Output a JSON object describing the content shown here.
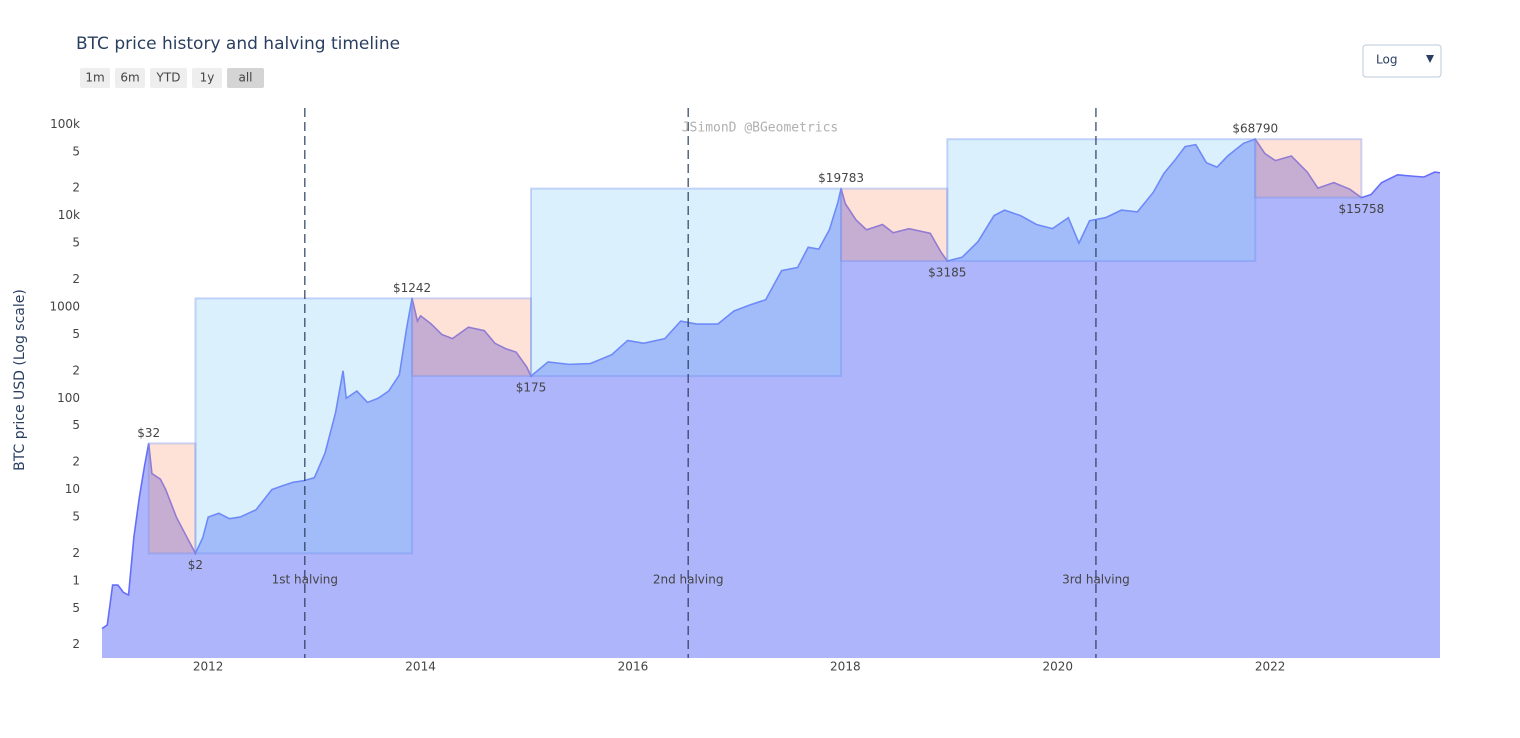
{
  "chart_data": {
    "type": "area",
    "title": "BTC price history and halving timeline",
    "range_buttons": [
      "1m",
      "6m",
      "YTD",
      "1y",
      "all"
    ],
    "active_button": 4,
    "scale_menu": "Log",
    "watermark": "JSimonD @BGeometrics",
    "y_label": "BTC price USD (Log scale)",
    "log_y": true,
    "area_color": "#aeb5fa",
    "line_color": "#636efa",
    "rise_color": "rgba(135,206,250,0.3)",
    "fall_color": "rgba(255,160,122,0.3)",
    "xlim": [
      2011.0,
      2023.6
    ],
    "xticks": [
      2012,
      2014,
      2016,
      2018,
      2020,
      2022
    ],
    "ylim": [
      0.143,
      151000
    ],
    "yticks": [
      {
        "value": 100000,
        "label": "100k"
      },
      {
        "value": 50000,
        "label": "5"
      },
      {
        "value": 20000,
        "label": "2"
      },
      {
        "value": 10000,
        "label": "10k"
      },
      {
        "value": 5000,
        "label": "5"
      },
      {
        "value": 2000,
        "label": "2"
      },
      1000,
      {
        "value": 500,
        "label": "5"
      },
      {
        "value": 200,
        "label": "2"
      },
      100,
      {
        "value": 50,
        "label": "5"
      },
      {
        "value": 20,
        "label": "2"
      },
      10,
      5,
      2,
      1,
      {
        "value": 0.5,
        "label": "5"
      },
      {
        "value": 0.2,
        "label": "2"
      }
    ],
    "x": [
      2011.0,
      2011.05,
      2011.1,
      2011.15,
      2011.2,
      2011.25,
      2011.3,
      2011.35,
      2011.4,
      2011.44,
      2011.47,
      2011.55,
      2011.6,
      2011.7,
      2011.8,
      2011.88,
      2011.95,
      2012.0,
      2012.1,
      2012.2,
      2012.3,
      2012.45,
      2012.6,
      2012.7,
      2012.8,
      2012.9,
      2013.0,
      2013.1,
      2013.2,
      2013.27,
      2013.3,
      2013.4,
      2013.5,
      2013.6,
      2013.7,
      2013.8,
      2013.87,
      2013.92,
      2013.97,
      2014.0,
      2014.1,
      2014.2,
      2014.3,
      2014.45,
      2014.6,
      2014.7,
      2014.8,
      2014.9,
      2015.0,
      2015.04,
      2015.2,
      2015.4,
      2015.6,
      2015.8,
      2015.95,
      2016.1,
      2016.3,
      2016.45,
      2016.6,
      2016.8,
      2016.95,
      2017.1,
      2017.25,
      2017.4,
      2017.55,
      2017.65,
      2017.75,
      2017.85,
      2017.93,
      2017.96,
      2018.0,
      2018.1,
      2018.2,
      2018.35,
      2018.45,
      2018.6,
      2018.8,
      2018.9,
      2018.96,
      2019.1,
      2019.25,
      2019.4,
      2019.5,
      2019.65,
      2019.8,
      2019.95,
      2020.1,
      2020.2,
      2020.3,
      2020.45,
      2020.6,
      2020.75,
      2020.9,
      2021.0,
      2021.1,
      2021.2,
      2021.3,
      2021.4,
      2021.5,
      2021.6,
      2021.75,
      2021.86,
      2021.95,
      2022.05,
      2022.2,
      2022.35,
      2022.45,
      2022.6,
      2022.75,
      2022.86,
      2022.95,
      2023.05,
      2023.2,
      2023.35,
      2023.45,
      2023.55,
      2023.6
    ],
    "values": [
      0.3,
      0.33,
      0.9,
      0.9,
      0.75,
      0.7,
      3,
      8,
      18,
      32,
      15,
      13,
      10,
      5,
      3,
      2,
      3,
      5,
      5.5,
      4.8,
      5,
      6,
      10,
      11,
      12,
      12.5,
      13.5,
      25,
      70,
      200,
      100,
      120,
      90,
      100,
      120,
      180,
      600,
      1242,
      700,
      800,
      650,
      500,
      450,
      600,
      550,
      400,
      350,
      320,
      220,
      175,
      250,
      235,
      240,
      300,
      430,
      400,
      450,
      700,
      650,
      650,
      900,
      1050,
      1200,
      2500,
      2700,
      4500,
      4300,
      7000,
      14000,
      19783,
      13500,
      9000,
      7000,
      8000,
      6500,
      7200,
      6400,
      4000,
      3185,
      3500,
      5200,
      10000,
      11500,
      10000,
      8000,
      7200,
      9500,
      5000,
      8800,
      9500,
      11500,
      11000,
      18000,
      29000,
      40000,
      57000,
      60000,
      38000,
      34000,
      45000,
      62000,
      68790,
      48000,
      40000,
      45000,
      30000,
      20000,
      23000,
      19500,
      15758,
      17000,
      23000,
      28000,
      27000,
      26500,
      30000,
      29500
    ],
    "extremes": [
      {
        "label": "$32",
        "x": 2011.44,
        "y": 32
      },
      {
        "label": "$2",
        "x": 2011.88,
        "y": 2
      },
      {
        "label": "$1242",
        "x": 2013.92,
        "y": 1242
      },
      {
        "label": "$175",
        "x": 2015.04,
        "y": 175
      },
      {
        "label": "$19783",
        "x": 2017.96,
        "y": 19783
      },
      {
        "label": "$3185",
        "x": 2018.96,
        "y": 3185
      },
      {
        "label": "$68790",
        "x": 2021.86,
        "y": 68790
      },
      {
        "label": "$15758",
        "x": 2022.86,
        "y": 15758
      }
    ],
    "halvings": [
      {
        "label": "1st halving",
        "x": 2012.91
      },
      {
        "label": "2nd halving",
        "x": 2016.52
      },
      {
        "label": "3rd halving",
        "x": 2020.36
      }
    ]
  }
}
